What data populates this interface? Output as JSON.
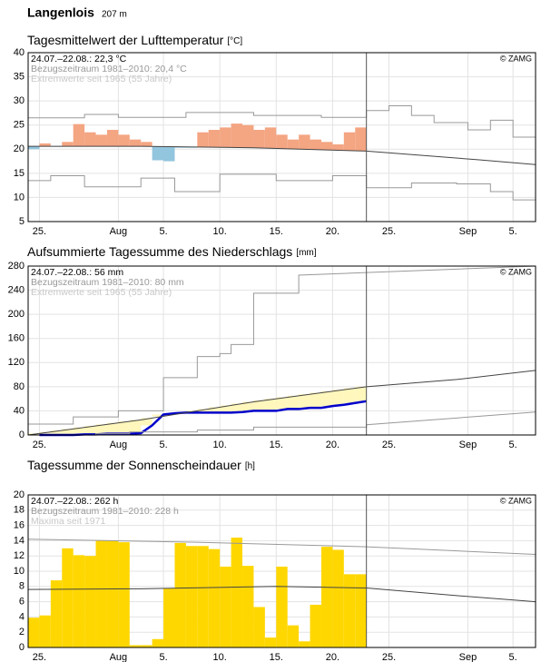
{
  "header": {
    "station": "Langenlois",
    "elevation": "207 m"
  },
  "chart_data": [
    {
      "type": "bar",
      "title": "Tagesmittelwert der Lufttemperatur",
      "unit": "[°C]",
      "annotations": [
        "24.07.–22.08.: 22,3 °C",
        "Bezugszeitraum 1981–2010: 20,4 °C",
        "Extremwerte seit 1965 (55 Jahre)"
      ],
      "source": "© ZAMG",
      "xlim": [
        0,
        45
      ],
      "ylim": [
        5,
        40
      ],
      "yticks": [
        5,
        10,
        15,
        20,
        25,
        30,
        35,
        40
      ],
      "xticks": [
        {
          "value": 1,
          "label": "25."
        },
        {
          "value": 8,
          "label": "Aug"
        },
        {
          "value": 12,
          "label": "5."
        },
        {
          "value": 17,
          "label": "10."
        },
        {
          "value": 22,
          "label": "15."
        },
        {
          "value": 27,
          "label": "20."
        },
        {
          "value": 32,
          "label": "25."
        },
        {
          "value": 39,
          "label": "Sep"
        },
        {
          "value": 43,
          "label": "5."
        }
      ],
      "grid": true,
      "marker_x": 30,
      "series": [
        {
          "style": "line",
          "color": "#999999",
          "x": [
            0,
            5,
            5,
            8,
            8,
            14,
            14,
            20,
            20,
            26,
            26,
            30,
            30,
            32,
            32,
            34,
            34,
            36,
            36,
            39,
            39,
            41,
            41,
            43,
            43,
            45
          ],
          "values": [
            26.5,
            26.5,
            27.2,
            27.2,
            26.6,
            26.6,
            27.6,
            27.6,
            27,
            27,
            26.6,
            26.6,
            28,
            28,
            29,
            29,
            27,
            27,
            25.5,
            25.5,
            24,
            24,
            26,
            26,
            22.5,
            22.5
          ]
        },
        {
          "style": "line",
          "color": "#999999",
          "x": [
            0,
            2,
            2,
            5,
            5,
            10,
            10,
            13,
            13,
            17,
            17,
            22,
            22,
            27,
            27,
            30,
            30,
            34,
            34,
            38,
            38,
            41,
            41,
            43,
            43,
            45
          ],
          "values": [
            13.5,
            13.5,
            14.5,
            14.5,
            12.2,
            12.2,
            14,
            14,
            11.2,
            11.2,
            14.8,
            14.8,
            13.5,
            13.5,
            14.5,
            14.5,
            12,
            12,
            13,
            13,
            12.8,
            12.8,
            11.2,
            11.2,
            9.5,
            9.5
          ]
        },
        {
          "style": "bars",
          "baseline": "normal",
          "color": "#f4a582",
          "color_below": "#92c5de",
          "x": [
            0,
            1,
            2,
            3,
            4,
            5,
            6,
            7,
            8,
            9,
            10,
            11,
            12,
            13,
            14,
            15,
            16,
            17,
            18,
            19,
            20,
            21,
            22,
            23,
            24,
            25,
            26,
            27,
            28,
            29
          ],
          "values": [
            20.0,
            21.2,
            20.5,
            21.5,
            25.2,
            23.5,
            23,
            24,
            23,
            22,
            21.5,
            17.7,
            17.5,
            20.3,
            20.3,
            23.5,
            24,
            24.5,
            25.3,
            25,
            24,
            24.5,
            23,
            22,
            23,
            22,
            21.5,
            21,
            23.5,
            24.5
          ]
        },
        {
          "style": "normal",
          "color": "#444444",
          "x": [
            0,
            10,
            20,
            30,
            40,
            45
          ],
          "values": [
            20.6,
            20.6,
            20.3,
            19.6,
            17.8,
            16.8
          ]
        }
      ]
    },
    {
      "type": "area",
      "title": "Aufsummierte Tagessumme des Niederschlags",
      "unit": "[mm]",
      "annotations": [
        "24.07.–22.08.: 56 mm",
        "Bezugszeitraum 1981–2010: 80 mm",
        "Extremwerte seit 1965 (55 Jahre)"
      ],
      "source": "© ZAMG",
      "xlim": [
        0,
        45
      ],
      "ylim": [
        0,
        280
      ],
      "yticks": [
        0,
        40,
        80,
        120,
        160,
        200,
        240,
        280
      ],
      "xticks": [
        {
          "value": 1,
          "label": "25."
        },
        {
          "value": 8,
          "label": "Aug"
        },
        {
          "value": 12,
          "label": "5."
        },
        {
          "value": 17,
          "label": "10."
        },
        {
          "value": 22,
          "label": "15."
        },
        {
          "value": 27,
          "label": "20."
        },
        {
          "value": 32,
          "label": "25."
        },
        {
          "value": 39,
          "label": "Sep"
        },
        {
          "value": 43,
          "label": "5."
        }
      ],
      "grid": true,
      "marker_x": 30,
      "series": [
        {
          "style": "line",
          "color": "#999999",
          "x": [
            0,
            4,
            4,
            8,
            8,
            12,
            12,
            15,
            15,
            17,
            17,
            18,
            18,
            20,
            20,
            24,
            24,
            45
          ],
          "values": [
            18,
            18,
            30,
            30,
            40,
            40,
            95,
            95,
            130,
            130,
            135,
            135,
            150,
            150,
            235,
            235,
            265,
            280
          ]
        },
        {
          "style": "line",
          "color": "#999999",
          "x": [
            0,
            6,
            6,
            9,
            9,
            15,
            15,
            20,
            20,
            30,
            30,
            45
          ],
          "values": [
            0,
            0,
            2,
            2,
            5,
            5,
            8,
            8,
            13,
            13,
            17,
            38
          ]
        },
        {
          "style": "normal",
          "color": "#444444",
          "x": [
            0,
            10,
            20,
            30,
            38,
            45
          ],
          "values": [
            0,
            25,
            55,
            80,
            92,
            107
          ]
        },
        {
          "style": "band-line",
          "baseline": "normal",
          "color": "#0000cc",
          "band_color": "#fff7bc",
          "x": [
            1,
            2,
            3,
            4,
            5,
            6,
            7,
            8,
            9,
            10,
            11,
            12,
            13,
            14,
            15,
            16,
            17,
            18,
            19,
            20,
            21,
            22,
            23,
            24,
            25,
            26,
            27,
            28,
            29,
            30
          ],
          "values": [
            0,
            0,
            0,
            0,
            1,
            1,
            2,
            2,
            2,
            3,
            16,
            34,
            36,
            37,
            37,
            37,
            37,
            37,
            38,
            40,
            40,
            40,
            43,
            43,
            45,
            45,
            48,
            50,
            53,
            56
          ]
        }
      ]
    },
    {
      "type": "bar",
      "title": "Tagessumme der Sonnenscheindauer",
      "unit": "[h]",
      "annotations": [
        "24.07.–22.08.: 262 h",
        "Bezugszeitraum 1981–2010: 228 h",
        "Maxima seit 1971"
      ],
      "source": "© ZAMG",
      "xlim": [
        0,
        45
      ],
      "ylim": [
        0,
        20
      ],
      "yticks": [
        0,
        2,
        4,
        6,
        8,
        10,
        12,
        14,
        16,
        18,
        20
      ],
      "xticks": [
        {
          "value": 1,
          "label": "25."
        },
        {
          "value": 8,
          "label": "Aug"
        },
        {
          "value": 12,
          "label": "5."
        },
        {
          "value": 17,
          "label": "10."
        },
        {
          "value": 22,
          "label": "15."
        },
        {
          "value": 27,
          "label": "20."
        },
        {
          "value": 32,
          "label": "25."
        },
        {
          "value": 39,
          "label": "Sep"
        },
        {
          "value": 43,
          "label": "5."
        }
      ],
      "grid": true,
      "marker_x": 30,
      "series": [
        {
          "style": "bars",
          "color": "#ffd700",
          "x": [
            0,
            1,
            2,
            3,
            4,
            5,
            6,
            7,
            8,
            9,
            10,
            11,
            12,
            13,
            14,
            15,
            16,
            17,
            18,
            19,
            20,
            21,
            22,
            23,
            24,
            25,
            26,
            27,
            28,
            29
          ],
          "values": [
            3.9,
            4.2,
            8.8,
            13,
            12.1,
            12,
            14,
            14,
            13.8,
            0.3,
            0.3,
            1.1,
            7.8,
            13.7,
            13.3,
            13.3,
            12.9,
            10.6,
            14.4,
            10.7,
            5.3,
            1.3,
            10.6,
            2.9,
            0.8,
            5.6,
            13.2,
            12.8,
            9.6,
            9.6
          ]
        },
        {
          "style": "line",
          "color": "#999999",
          "x": [
            0,
            15,
            30,
            45
          ],
          "values": [
            14.2,
            13.8,
            13.2,
            12.2
          ]
        },
        {
          "style": "normal",
          "color": "#444444",
          "x": [
            0,
            10,
            22,
            30,
            38,
            45
          ],
          "values": [
            7.6,
            7.7,
            8,
            7.8,
            6.8,
            6.0
          ]
        }
      ]
    }
  ]
}
